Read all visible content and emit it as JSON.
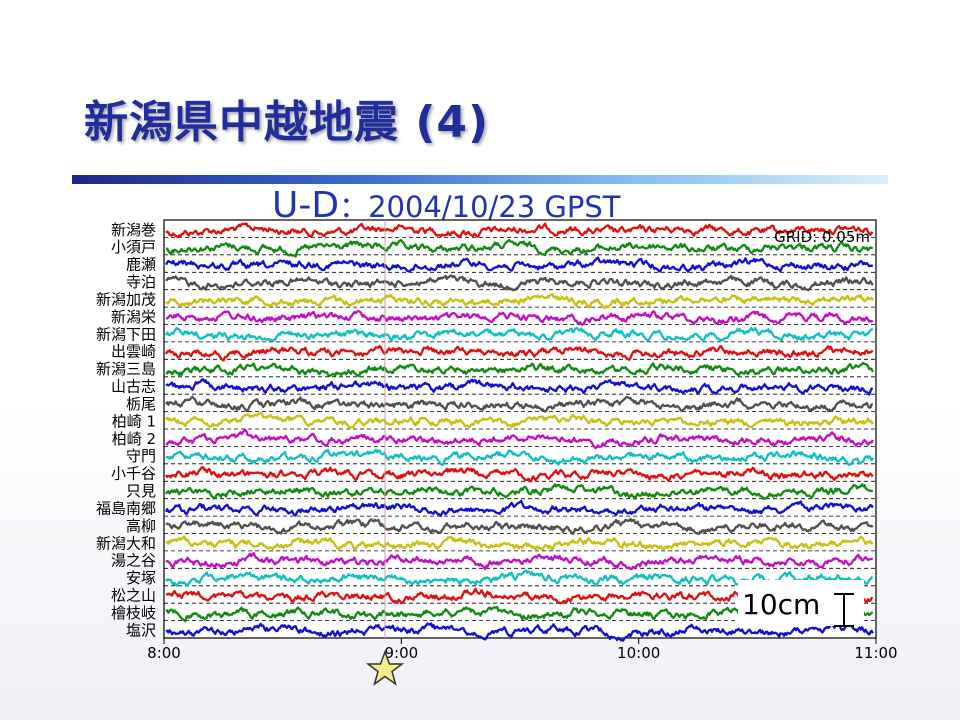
{
  "slide": {
    "title": "新潟県中越地震 (4)",
    "component": "U-D",
    "date_text": "：2004/10/23 GPST"
  },
  "chart_data": {
    "type": "line",
    "title": "U-D ：2004/10/23 GPST",
    "x_ticks": [
      "8:00",
      "9:00",
      "10:00",
      "11:00"
    ],
    "xlim": [
      "8:00",
      "11:00"
    ],
    "y_grid_spacing_m": 0.05,
    "grid_label": "GRID: 0.05m",
    "scale_bar_label": "10cm",
    "event_marker_time": "9:00",
    "event_marker_symbol": "star",
    "grid": "horizontal dashed",
    "stations": [
      {
        "label": "新潟巻",
        "color": "#e01010"
      },
      {
        "label": "小須戸",
        "color": "#108a10"
      },
      {
        "label": "鹿瀬",
        "color": "#1010d0"
      },
      {
        "label": "寺泊",
        "color": "#505050"
      },
      {
        "label": "新潟加茂",
        "color": "#c8c010"
      },
      {
        "label": "新潟栄",
        "color": "#c010c0"
      },
      {
        "label": "新潟下田",
        "color": "#10c0c0"
      },
      {
        "label": "出雲崎",
        "color": "#e01010"
      },
      {
        "label": "新潟三島",
        "color": "#108a10"
      },
      {
        "label": "山古志",
        "color": "#1010d0"
      },
      {
        "label": "栃尾",
        "color": "#505050"
      },
      {
        "label": "柏崎 1",
        "color": "#c8c010"
      },
      {
        "label": "柏崎 2",
        "color": "#c010c0"
      },
      {
        "label": "守門",
        "color": "#10c0c0"
      },
      {
        "label": "小千谷",
        "color": "#e01010"
      },
      {
        "label": "只見",
        "color": "#108a10"
      },
      {
        "label": "福島南郷",
        "color": "#1010d0"
      },
      {
        "label": "高柳",
        "color": "#505050"
      },
      {
        "label": "新潟大和",
        "color": "#c8c010"
      },
      {
        "label": "湯之谷",
        "color": "#c010c0"
      },
      {
        "label": "安塚",
        "color": "#10c0c0"
      },
      {
        "label": "松之山",
        "color": "#e01010"
      },
      {
        "label": "檜枝岐",
        "color": "#108a10"
      },
      {
        "label": "塩沢",
        "color": "#1010d0"
      }
    ]
  }
}
